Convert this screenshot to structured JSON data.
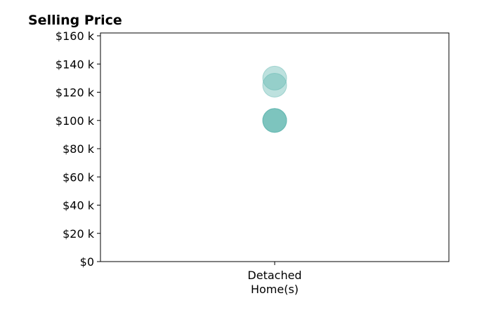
{
  "chart_data": {
    "type": "scatter",
    "title": "Selling Price",
    "categories": [
      "Detached\nHome(s)"
    ],
    "series": [
      {
        "category": "Detached\nHome(s)",
        "values": [
          130000,
          125000,
          100000,
          100000,
          100000
        ]
      }
    ],
    "ylim": [
      0,
      162000
    ],
    "yticks": [
      0,
      20000,
      40000,
      60000,
      80000,
      100000,
      120000,
      140000,
      160000
    ],
    "ytick_labels": [
      "$0",
      "$20 k",
      "$40 k",
      "$60 k",
      "$80 k",
      "$100 k",
      "$120 k",
      "$140 k",
      "$160 k"
    ],
    "grid": false,
    "marker_color": "#5ab4ac",
    "marker_edge_color": "#5ab4ac"
  }
}
